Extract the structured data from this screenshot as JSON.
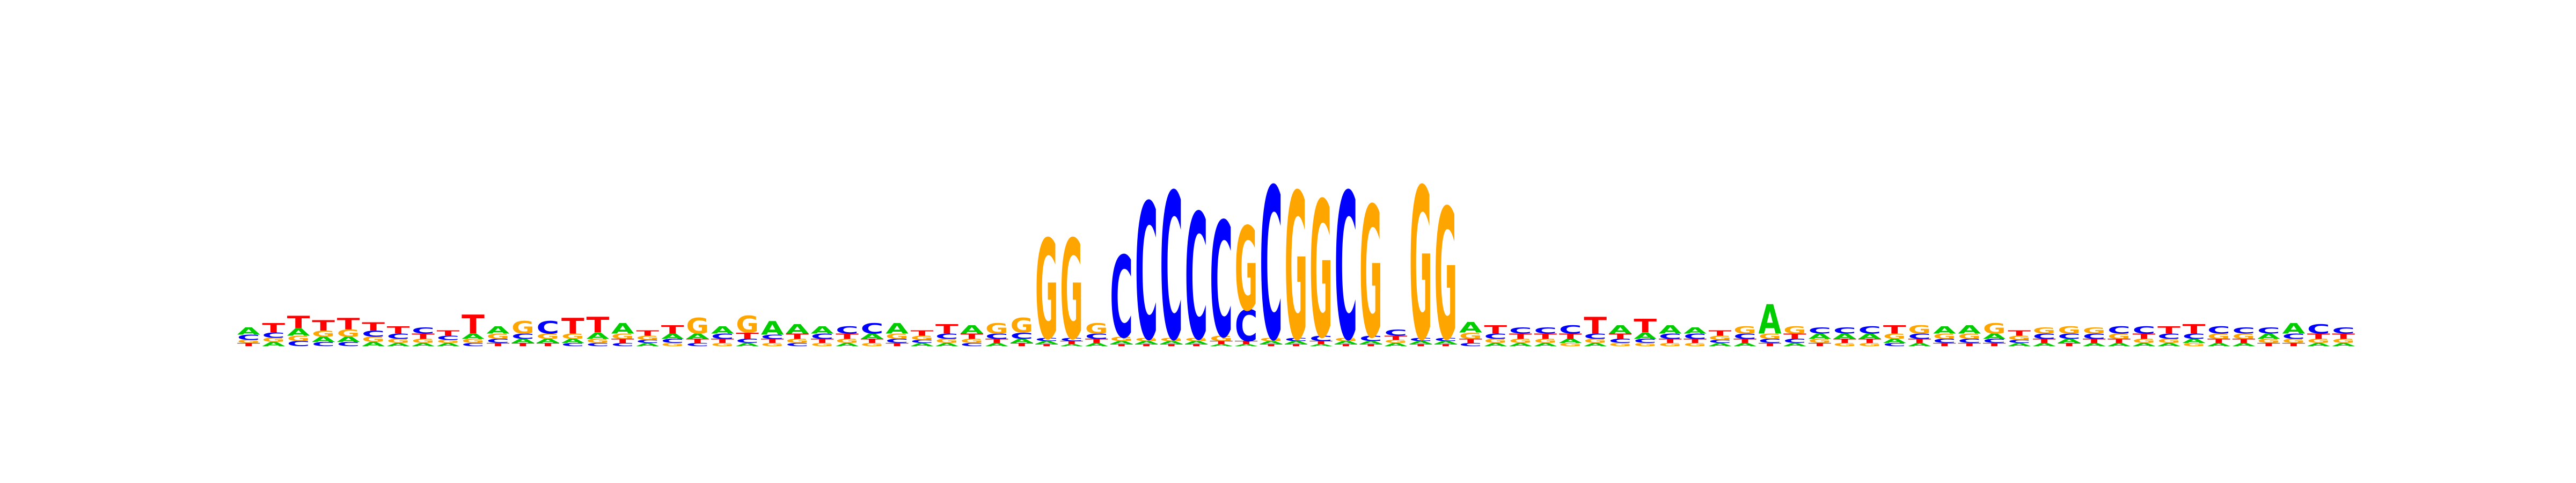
{
  "logo": {
    "colors": {
      "A": "#00cc00",
      "C": "#0000ff",
      "G": "#ffa500",
      "T": "#ff0000"
    },
    "max_bits": 2.0,
    "columns": [
      [
        [
          "T",
          0.03
        ],
        [
          "G",
          0.03
        ],
        [
          "C",
          0.05
        ],
        [
          "A",
          0.07
        ]
      ],
      [
        [
          "A",
          0.04
        ],
        [
          "G",
          0.04
        ],
        [
          "C",
          0.05
        ],
        [
          "T",
          0.09
        ]
      ],
      [
        [
          "C",
          0.05
        ],
        [
          "G",
          0.05
        ],
        [
          "A",
          0.07
        ],
        [
          "T",
          0.12
        ]
      ],
      [
        [
          "C",
          0.04
        ],
        [
          "A",
          0.05
        ],
        [
          "G",
          0.06
        ],
        [
          "T",
          0.1
        ]
      ],
      [
        [
          "C",
          0.04
        ],
        [
          "A",
          0.05
        ],
        [
          "G",
          0.07
        ],
        [
          "T",
          0.11
        ]
      ],
      [
        [
          "A",
          0.04
        ],
        [
          "G",
          0.05
        ],
        [
          "C",
          0.06
        ],
        [
          "T",
          0.08
        ]
      ],
      [
        [
          "A",
          0.03
        ],
        [
          "G",
          0.04
        ],
        [
          "C",
          0.05
        ],
        [
          "T",
          0.07
        ]
      ],
      [
        [
          "A",
          0.03
        ],
        [
          "G",
          0.04
        ],
        [
          "T",
          0.05
        ],
        [
          "C",
          0.06
        ]
      ],
      [
        [
          "A",
          0.03
        ],
        [
          "G",
          0.03
        ],
        [
          "C",
          0.04
        ],
        [
          "T",
          0.05
        ]
      ],
      [
        [
          "C",
          0.03
        ],
        [
          "G",
          0.04
        ],
        [
          "A",
          0.05
        ],
        [
          "T",
          0.18
        ]
      ],
      [
        [
          "T",
          0.03
        ],
        [
          "C",
          0.04
        ],
        [
          "G",
          0.05
        ],
        [
          "A",
          0.07
        ]
      ],
      [
        [
          "T",
          0.03
        ],
        [
          "A",
          0.04
        ],
        [
          "C",
          0.05
        ],
        [
          "G",
          0.12
        ]
      ],
      [
        [
          "T",
          0.03
        ],
        [
          "A",
          0.04
        ],
        [
          "G",
          0.05
        ],
        [
          "C",
          0.12
        ]
      ],
      [
        [
          "C",
          0.03
        ],
        [
          "A",
          0.04
        ],
        [
          "G",
          0.05
        ],
        [
          "T",
          0.15
        ]
      ],
      [
        [
          "C",
          0.03
        ],
        [
          "G",
          0.04
        ],
        [
          "A",
          0.06
        ],
        [
          "T",
          0.15
        ]
      ],
      [
        [
          "C",
          0.03
        ],
        [
          "T",
          0.04
        ],
        [
          "G",
          0.05
        ],
        [
          "A",
          0.1
        ]
      ],
      [
        [
          "A",
          0.03
        ],
        [
          "C",
          0.03
        ],
        [
          "G",
          0.04
        ],
        [
          "T",
          0.05
        ]
      ],
      [
        [
          "G",
          0.03
        ],
        [
          "C",
          0.04
        ],
        [
          "A",
          0.05
        ],
        [
          "T",
          0.08
        ]
      ],
      [
        [
          "C",
          0.03
        ],
        [
          "T",
          0.04
        ],
        [
          "A",
          0.05
        ],
        [
          "G",
          0.15
        ]
      ],
      [
        [
          "G",
          0.03
        ],
        [
          "T",
          0.04
        ],
        [
          "C",
          0.05
        ],
        [
          "A",
          0.07
        ]
      ],
      [
        [
          "A",
          0.03
        ],
        [
          "C",
          0.04
        ],
        [
          "T",
          0.06
        ],
        [
          "G",
          0.16
        ]
      ],
      [
        [
          "G",
          0.03
        ],
        [
          "T",
          0.04
        ],
        [
          "C",
          0.04
        ],
        [
          "A",
          0.13
        ]
      ],
      [
        [
          "C",
          0.03
        ],
        [
          "G",
          0.04
        ],
        [
          "T",
          0.05
        ],
        [
          "A",
          0.09
        ]
      ],
      [
        [
          "G",
          0.03
        ],
        [
          "T",
          0.04
        ],
        [
          "C",
          0.05
        ],
        [
          "A",
          0.07
        ]
      ],
      [
        [
          "A",
          0.03
        ],
        [
          "G",
          0.04
        ],
        [
          "T",
          0.05
        ],
        [
          "C",
          0.07
        ]
      ],
      [
        [
          "G",
          0.03
        ],
        [
          "T",
          0.04
        ],
        [
          "A",
          0.05
        ],
        [
          "C",
          0.1
        ]
      ],
      [
        [
          "T",
          0.03
        ],
        [
          "C",
          0.04
        ],
        [
          "G",
          0.05
        ],
        [
          "A",
          0.1
        ]
      ],
      [
        [
          "A",
          0.03
        ],
        [
          "C",
          0.03
        ],
        [
          "G",
          0.04
        ],
        [
          "T",
          0.05
        ]
      ],
      [
        [
          "A",
          0.03
        ],
        [
          "G",
          0.04
        ],
        [
          "C",
          0.05
        ],
        [
          "T",
          0.09
        ]
      ],
      [
        [
          "C",
          0.03
        ],
        [
          "G",
          0.04
        ],
        [
          "T",
          0.05
        ],
        [
          "A",
          0.08
        ]
      ],
      [
        [
          "A",
          0.03
        ],
        [
          "T",
          0.04
        ],
        [
          "C",
          0.05
        ],
        [
          "G",
          0.1
        ]
      ],
      [
        [
          "T",
          0.03
        ],
        [
          "A",
          0.04
        ],
        [
          "C",
          0.06
        ],
        [
          "G",
          0.14
        ]
      ],
      [
        [
          "T",
          0.02
        ],
        [
          "A",
          0.03
        ],
        [
          "C",
          0.03
        ],
        [
          "G",
          0.95
        ]
      ],
      [
        [
          "A",
          0.02
        ],
        [
          "T",
          0.03
        ],
        [
          "C",
          0.03
        ],
        [
          "G",
          0.95
        ]
      ],
      [
        [
          "A",
          0.03
        ],
        [
          "T",
          0.04
        ],
        [
          "C",
          0.05
        ],
        [
          "G",
          0.1
        ]
      ],
      [
        [
          "T",
          0.02
        ],
        [
          "A",
          0.03
        ],
        [
          "G",
          0.04
        ],
        [
          "C",
          0.78
        ]
      ],
      [
        [
          "T",
          0.02
        ],
        [
          "A",
          0.03
        ],
        [
          "G",
          0.03
        ],
        [
          "C",
          1.3
        ]
      ],
      [
        [
          "T",
          0.02
        ],
        [
          "A",
          0.03
        ],
        [
          "G",
          0.03
        ],
        [
          "C",
          1.4
        ]
      ],
      [
        [
          "T",
          0.02
        ],
        [
          "A",
          0.03
        ],
        [
          "G",
          0.03
        ],
        [
          "C",
          1.2
        ]
      ],
      [
        [
          "A",
          0.02
        ],
        [
          "T",
          0.03
        ],
        [
          "G",
          0.05
        ],
        [
          "C",
          1.1
        ]
      ],
      [
        [
          "A",
          0.02
        ],
        [
          "T",
          0.03
        ],
        [
          "C",
          0.3
        ],
        [
          "G",
          0.8
        ]
      ],
      [
        [
          "T",
          0.02
        ],
        [
          "A",
          0.03
        ],
        [
          "G",
          0.03
        ],
        [
          "C",
          1.45
        ]
      ],
      [
        [
          "T",
          0.02
        ],
        [
          "A",
          0.03
        ],
        [
          "C",
          0.03
        ],
        [
          "G",
          1.4
        ]
      ],
      [
        [
          "A",
          0.02
        ],
        [
          "T",
          0.03
        ],
        [
          "C",
          0.05
        ],
        [
          "G",
          1.3
        ]
      ],
      [
        [
          "T",
          0.02
        ],
        [
          "A",
          0.03
        ],
        [
          "G",
          0.03
        ],
        [
          "C",
          1.4
        ]
      ],
      [
        [
          "T",
          0.02
        ],
        [
          "A",
          0.03
        ],
        [
          "C",
          0.05
        ],
        [
          "G",
          1.25
        ]
      ],
      [
        [
          "A",
          0.03
        ],
        [
          "G",
          0.03
        ],
        [
          "T",
          0.04
        ],
        [
          "C",
          0.06
        ]
      ],
      [
        [
          "T",
          0.02
        ],
        [
          "A",
          0.03
        ],
        [
          "C",
          0.03
        ],
        [
          "G",
          1.45
        ]
      ],
      [
        [
          "T",
          0.02
        ],
        [
          "A",
          0.03
        ],
        [
          "C",
          0.03
        ],
        [
          "G",
          1.25
        ]
      ],
      [
        [
          "C",
          0.03
        ],
        [
          "T",
          0.04
        ],
        [
          "G",
          0.06
        ],
        [
          "A",
          0.1
        ]
      ],
      [
        [
          "A",
          0.03
        ],
        [
          "G",
          0.04
        ],
        [
          "C",
          0.05
        ],
        [
          "T",
          0.08
        ]
      ],
      [
        [
          "A",
          0.03
        ],
        [
          "G",
          0.04
        ],
        [
          "T",
          0.05
        ],
        [
          "C",
          0.06
        ]
      ],
      [
        [
          "A",
          0.03
        ],
        [
          "G",
          0.04
        ],
        [
          "T",
          0.05
        ],
        [
          "C",
          0.06
        ]
      ],
      [
        [
          "G",
          0.03
        ],
        [
          "A",
          0.04
        ],
        [
          "T",
          0.05
        ],
        [
          "C",
          0.08
        ]
      ],
      [
        [
          "A",
          0.03
        ],
        [
          "G",
          0.04
        ],
        [
          "C",
          0.05
        ],
        [
          "T",
          0.16
        ]
      ],
      [
        [
          "G",
          0.03
        ],
        [
          "C",
          0.04
        ],
        [
          "T",
          0.05
        ],
        [
          "A",
          0.08
        ]
      ],
      [
        [
          "G",
          0.03
        ],
        [
          "C",
          0.04
        ],
        [
          "A",
          0.06
        ],
        [
          "T",
          0.13
        ]
      ],
      [
        [
          "G",
          0.03
        ],
        [
          "T",
          0.04
        ],
        [
          "C",
          0.05
        ],
        [
          "A",
          0.08
        ]
      ],
      [
        [
          "G",
          0.03
        ],
        [
          "T",
          0.04
        ],
        [
          "C",
          0.05
        ],
        [
          "A",
          0.06
        ]
      ],
      [
        [
          "A",
          0.03
        ],
        [
          "C",
          0.03
        ],
        [
          "G",
          0.04
        ],
        [
          "T",
          0.05
        ]
      ],
      [
        [
          "A",
          0.03
        ],
        [
          "T",
          0.04
        ],
        [
          "C",
          0.05
        ],
        [
          "G",
          0.07
        ]
      ],
      [
        [
          "T",
          0.03
        ],
        [
          "C",
          0.04
        ],
        [
          "G",
          0.05
        ],
        [
          "A",
          0.28
        ]
      ],
      [
        [
          "A",
          0.03
        ],
        [
          "C",
          0.04
        ],
        [
          "T",
          0.05
        ],
        [
          "G",
          0.07
        ]
      ],
      [
        [
          "T",
          0.03
        ],
        [
          "G",
          0.04
        ],
        [
          "A",
          0.05
        ],
        [
          "C",
          0.06
        ]
      ],
      [
        [
          "G",
          0.03
        ],
        [
          "T",
          0.04
        ],
        [
          "A",
          0.05
        ],
        [
          "C",
          0.06
        ]
      ],
      [
        [
          "G",
          0.03
        ],
        [
          "T",
          0.04
        ],
        [
          "A",
          0.05
        ],
        [
          "C",
          0.07
        ]
      ],
      [
        [
          "C",
          0.03
        ],
        [
          "A",
          0.04
        ],
        [
          "G",
          0.05
        ],
        [
          "T",
          0.08
        ]
      ],
      [
        [
          "A",
          0.03
        ],
        [
          "T",
          0.04
        ],
        [
          "C",
          0.05
        ],
        [
          "G",
          0.08
        ]
      ],
      [
        [
          "T",
          0.03
        ],
        [
          "C",
          0.04
        ],
        [
          "G",
          0.05
        ],
        [
          "A",
          0.07
        ]
      ],
      [
        [
          "T",
          0.03
        ],
        [
          "C",
          0.04
        ],
        [
          "G",
          0.05
        ],
        [
          "A",
          0.08
        ]
      ],
      [
        [
          "T",
          0.03
        ],
        [
          "C",
          0.04
        ],
        [
          "A",
          0.05
        ],
        [
          "G",
          0.1
        ]
      ],
      [
        [
          "A",
          0.03
        ],
        [
          "C",
          0.03
        ],
        [
          "G",
          0.04
        ],
        [
          "T",
          0.05
        ]
      ],
      [
        [
          "A",
          0.03
        ],
        [
          "T",
          0.04
        ],
        [
          "C",
          0.05
        ],
        [
          "G",
          0.06
        ]
      ],
      [
        [
          "T",
          0.03
        ],
        [
          "A",
          0.04
        ],
        [
          "C",
          0.05
        ],
        [
          "G",
          0.07
        ]
      ],
      [
        [
          "A",
          0.03
        ],
        [
          "T",
          0.04
        ],
        [
          "C",
          0.05
        ],
        [
          "G",
          0.06
        ]
      ],
      [
        [
          "A",
          0.03
        ],
        [
          "T",
          0.04
        ],
        [
          "G",
          0.05
        ],
        [
          "C",
          0.07
        ]
      ],
      [
        [
          "A",
          0.03
        ],
        [
          "G",
          0.04
        ],
        [
          "T",
          0.05
        ],
        [
          "C",
          0.07
        ]
      ],
      [
        [
          "A",
          0.03
        ],
        [
          "G",
          0.04
        ],
        [
          "C",
          0.05
        ],
        [
          "T",
          0.07
        ]
      ],
      [
        [
          "G",
          0.03
        ],
        [
          "A",
          0.04
        ],
        [
          "C",
          0.05
        ],
        [
          "T",
          0.09
        ]
      ],
      [
        [
          "A",
          0.03
        ],
        [
          "T",
          0.04
        ],
        [
          "G",
          0.05
        ],
        [
          "C",
          0.07
        ]
      ],
      [
        [
          "A",
          0.03
        ],
        [
          "T",
          0.04
        ],
        [
          "G",
          0.05
        ],
        [
          "C",
          0.06
        ]
      ],
      [
        [
          "T",
          0.03
        ],
        [
          "G",
          0.04
        ],
        [
          "A",
          0.05
        ],
        [
          "C",
          0.06
        ]
      ],
      [
        [
          "T",
          0.03
        ],
        [
          "G",
          0.04
        ],
        [
          "C",
          0.05
        ],
        [
          "A",
          0.1
        ]
      ],
      [
        [
          "A",
          0.03
        ],
        [
          "G",
          0.04
        ],
        [
          "T",
          0.05
        ],
        [
          "C",
          0.09
        ]
      ],
      [
        [
          "A",
          0.03
        ],
        [
          "G",
          0.04
        ],
        [
          "T",
          0.05
        ],
        [
          "C",
          0.06
        ]
      ]
    ]
  }
}
